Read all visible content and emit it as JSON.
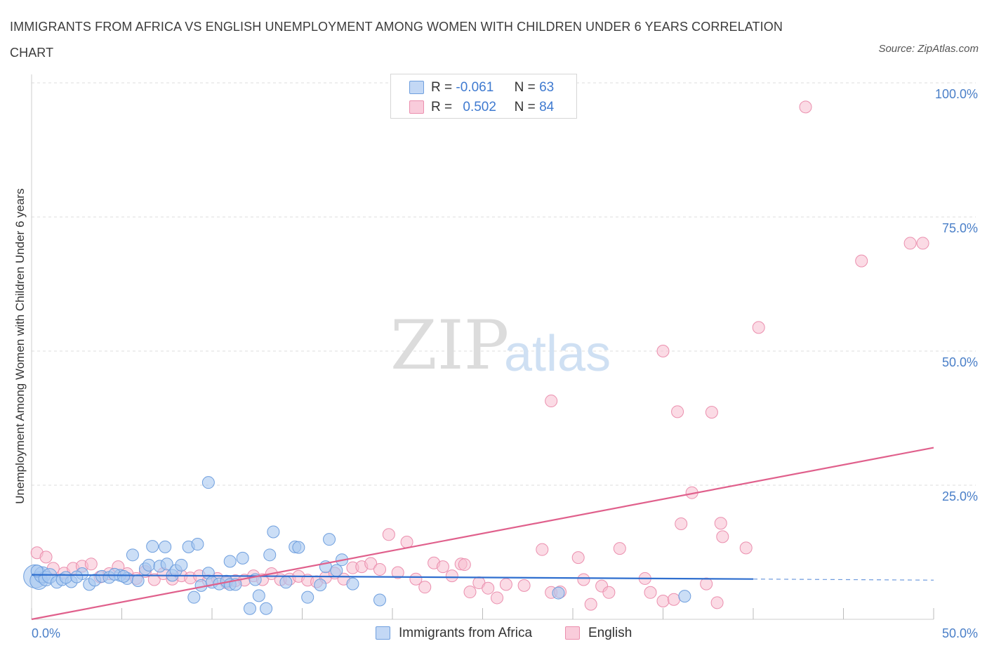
{
  "title": "IMMIGRANTS FROM AFRICA VS ENGLISH UNEMPLOYMENT AMONG WOMEN WITH CHILDREN UNDER 6 YEARS CORRELATION CHART",
  "source": "Source: ZipAtlas.com",
  "watermark": {
    "zip": "ZIP",
    "atlas": "atlas"
  },
  "colors": {
    "series_a_fill": "#a9c8f0",
    "series_a_stroke": "#6f9fde",
    "series_a_line": "#2f6fcf",
    "series_b_fill": "#f7bdd0",
    "series_b_stroke": "#eb8fae",
    "series_b_line": "#e0608c",
    "tick_label": "#4a7fc8",
    "grid": "#dddddd"
  },
  "stats": [
    {
      "r_label": "R =",
      "r_value": "-0.061",
      "n_label": "N =",
      "n_value": "63"
    },
    {
      "r_label": "R =",
      "r_value": "0.502",
      "n_label": "N =",
      "n_value": "84"
    }
  ],
  "legend": [
    {
      "label": "Immigrants from Africa"
    },
    {
      "label": "English"
    }
  ],
  "chart_data": {
    "type": "scatter",
    "title": "IMMIGRANTS FROM AFRICA VS ENGLISH UNEMPLOYMENT AMONG WOMEN WITH CHILDREN UNDER 6 YEARS CORRELATION CHART",
    "xlabel": "",
    "ylabel": "Unemployment Among Women with Children Under 6 years",
    "xlim": [
      0,
      50
    ],
    "ylim": [
      0,
      100
    ],
    "x_tick_labels": [
      "0.0%",
      "50.0%"
    ],
    "y_tick_labels": [
      "100.0%",
      "75.0%",
      "50.0%",
      "25.0%"
    ],
    "y_tick_values": [
      100,
      75,
      50,
      25
    ],
    "grid": true,
    "legend_position": "bottom-center",
    "series": [
      {
        "name": "Immigrants from Africa",
        "r": -0.061,
        "n": 63,
        "trend": {
          "x0": 0,
          "y0": 8.3,
          "x1": 40,
          "y1": 7.5,
          "dashed_to_x": 50,
          "dashed_to_y": 7.3
        },
        "points": [
          [
            0.2,
            8.0
          ],
          [
            0.4,
            7.2
          ],
          [
            0.6,
            8.3
          ],
          [
            0.8,
            7.6
          ],
          [
            1.0,
            8.1
          ],
          [
            1.4,
            6.9
          ],
          [
            1.7,
            7.4
          ],
          [
            2.2,
            7.0
          ],
          [
            2.8,
            8.5
          ],
          [
            3.2,
            6.5
          ],
          [
            3.5,
            7.3
          ],
          [
            3.9,
            8.0
          ],
          [
            4.3,
            7.8
          ],
          [
            4.9,
            8.2
          ],
          [
            5.3,
            7.6
          ],
          [
            5.6,
            12.0
          ],
          [
            5.9,
            7.2
          ],
          [
            6.3,
            9.4
          ],
          [
            6.5,
            10.1
          ],
          [
            6.7,
            13.6
          ],
          [
            7.1,
            9.9
          ],
          [
            7.4,
            13.5
          ],
          [
            7.5,
            10.3
          ],
          [
            7.8,
            8.2
          ],
          [
            8.0,
            9.1
          ],
          [
            8.3,
            10.1
          ],
          [
            8.7,
            13.5
          ],
          [
            9.2,
            14.0
          ],
          [
            9.4,
            6.3
          ],
          [
            9.0,
            4.1
          ],
          [
            9.8,
            8.6
          ],
          [
            9.8,
            25.5
          ],
          [
            10.0,
            6.9
          ],
          [
            10.4,
            6.6
          ],
          [
            10.8,
            7.1
          ],
          [
            11.0,
            6.5
          ],
          [
            11.0,
            10.8
          ],
          [
            11.3,
            6.5
          ],
          [
            11.7,
            11.4
          ],
          [
            12.1,
            2.0
          ],
          [
            12.6,
            4.4
          ],
          [
            13.0,
            2.0
          ],
          [
            13.2,
            12.0
          ],
          [
            13.4,
            16.3
          ],
          [
            14.1,
            6.9
          ],
          [
            14.6,
            13.5
          ],
          [
            14.8,
            13.4
          ],
          [
            15.3,
            4.1
          ],
          [
            16.0,
            6.4
          ],
          [
            16.3,
            9.8
          ],
          [
            16.5,
            14.9
          ],
          [
            16.9,
            9.1
          ],
          [
            17.2,
            11.1
          ],
          [
            17.8,
            6.6
          ],
          [
            19.3,
            3.6
          ],
          [
            29.2,
            4.9
          ],
          [
            36.2,
            4.3
          ],
          [
            0.3,
            9.0
          ],
          [
            1.9,
            7.8
          ],
          [
            2.5,
            7.9
          ],
          [
            4.6,
            8.4
          ],
          [
            5.1,
            8.0
          ],
          [
            12.4,
            7.4
          ]
        ],
        "marker_sizes": [
          30,
          22,
          20,
          18,
          18,
          14,
          14,
          14,
          14,
          14,
          14,
          14,
          14,
          14,
          14,
          14,
          14,
          14,
          14,
          14,
          14,
          14,
          14,
          14,
          14,
          14,
          14,
          14,
          14,
          14,
          14,
          14,
          14,
          14,
          14,
          14,
          14,
          14,
          14,
          14,
          14,
          14,
          14,
          14,
          14,
          14,
          14,
          14,
          14,
          14,
          14,
          14,
          14,
          14,
          14,
          14,
          14,
          14,
          14,
          14,
          14,
          14,
          14
        ]
      },
      {
        "name": "English",
        "r": 0.502,
        "n": 84,
        "trend": {
          "x0": 0,
          "y0": 0.0,
          "x1": 50,
          "y1": 32.0
        },
        "points": [
          [
            0.3,
            12.4
          ],
          [
            0.8,
            11.6
          ],
          [
            1.2,
            9.5
          ],
          [
            1.8,
            8.6
          ],
          [
            2.3,
            9.5
          ],
          [
            2.8,
            9.9
          ],
          [
            3.3,
            10.3
          ],
          [
            3.8,
            7.9
          ],
          [
            4.3,
            8.5
          ],
          [
            4.8,
            9.8
          ],
          [
            5.3,
            8.5
          ],
          [
            5.8,
            7.6
          ],
          [
            6.3,
            8.9
          ],
          [
            6.8,
            7.4
          ],
          [
            7.3,
            8.5
          ],
          [
            7.8,
            7.5
          ],
          [
            8.3,
            8.1
          ],
          [
            8.8,
            7.7
          ],
          [
            9.3,
            8.1
          ],
          [
            9.8,
            7.2
          ],
          [
            10.3,
            7.6
          ],
          [
            10.8,
            6.8
          ],
          [
            11.3,
            7.2
          ],
          [
            11.8,
            7.3
          ],
          [
            12.3,
            8.1
          ],
          [
            12.8,
            7.4
          ],
          [
            13.3,
            8.5
          ],
          [
            13.8,
            7.4
          ],
          [
            14.3,
            7.5
          ],
          [
            14.8,
            8.0
          ],
          [
            15.3,
            7.3
          ],
          [
            15.8,
            7.0
          ],
          [
            16.3,
            7.8
          ],
          [
            16.8,
            8.6
          ],
          [
            17.3,
            7.5
          ],
          [
            17.8,
            9.6
          ],
          [
            18.3,
            9.8
          ],
          [
            18.8,
            10.4
          ],
          [
            19.3,
            9.3
          ],
          [
            19.8,
            15.8
          ],
          [
            20.3,
            8.7
          ],
          [
            20.8,
            14.4
          ],
          [
            21.3,
            7.5
          ],
          [
            21.8,
            6.0
          ],
          [
            22.3,
            10.5
          ],
          [
            22.8,
            9.8
          ],
          [
            23.3,
            8.1
          ],
          [
            23.8,
            10.3
          ],
          [
            24.3,
            5.1
          ],
          [
            24.8,
            6.8
          ],
          [
            25.3,
            5.8
          ],
          [
            25.8,
            4.0
          ],
          [
            26.3,
            6.5
          ],
          [
            27.3,
            6.3
          ],
          [
            28.3,
            13.0
          ],
          [
            28.8,
            5.0
          ],
          [
            29.3,
            5.1
          ],
          [
            30.3,
            11.5
          ],
          [
            30.6,
            7.4
          ],
          [
            31.0,
            2.8
          ],
          [
            31.6,
            6.2
          ],
          [
            32.0,
            5.0
          ],
          [
            32.6,
            13.2
          ],
          [
            34.0,
            7.6
          ],
          [
            34.3,
            5.0
          ],
          [
            35.0,
            3.4
          ],
          [
            35.6,
            3.7
          ],
          [
            36.0,
            17.8
          ],
          [
            37.4,
            6.6
          ],
          [
            38.0,
            3.1
          ],
          [
            38.2,
            17.9
          ],
          [
            38.3,
            15.4
          ],
          [
            39.6,
            13.3
          ],
          [
            36.6,
            23.6
          ],
          [
            28.8,
            40.7
          ],
          [
            35.0,
            50.0
          ],
          [
            37.7,
            38.6
          ],
          [
            40.3,
            54.4
          ],
          [
            42.9,
            95.5
          ],
          [
            46.0,
            66.8
          ],
          [
            48.7,
            70.1
          ],
          [
            49.4,
            70.1
          ],
          [
            35.8,
            38.7
          ],
          [
            24.0,
            10.2
          ]
        ]
      }
    ]
  }
}
